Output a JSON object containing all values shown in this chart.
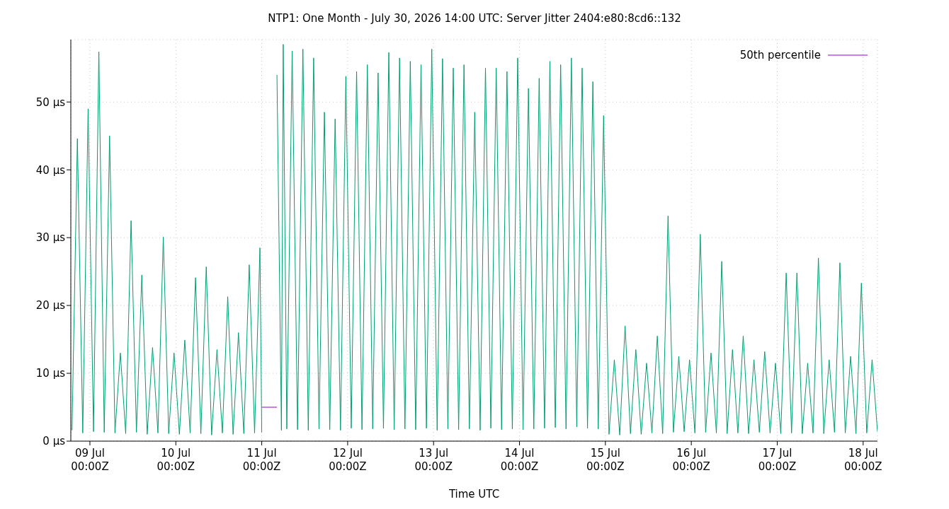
{
  "chart_data": {
    "type": "line",
    "title": "NTP1: One Month - July 30, 2026 14:00 UTC: Server Jitter 2404:e80:8cd6::132",
    "xlabel": "Time UTC",
    "xlim": [
      "--07-08T18:40",
      "--07-18T04:00"
    ],
    "xticks": [
      {
        "value": "--07-09T00:00",
        "label": "09 Jul 00:00Z"
      },
      {
        "value": "--07-10T00:00",
        "label": "10 Jul 00:00Z"
      },
      {
        "value": "--07-11T00:00",
        "label": "11 Jul 00:00Z"
      },
      {
        "value": "--07-12T00:00",
        "label": "12 Jul 00:00Z"
      },
      {
        "value": "--07-13T00:00",
        "label": "13 Jul 00:00Z"
      },
      {
        "value": "--07-14T00:00",
        "label": "14 Jul 00:00Z"
      },
      {
        "value": "--07-15T00:00",
        "label": "15 Jul 00:00Z"
      },
      {
        "value": "--07-16T00:00",
        "label": "16 Jul 00:00Z"
      },
      {
        "value": "--07-17T00:00",
        "label": "17 Jul 00:00Z"
      },
      {
        "value": "--07-18T00:00",
        "label": "18 Jul 00:00Z"
      }
    ],
    "ylim": [
      0,
      59.2
    ],
    "yticks": [
      {
        "value": 0,
        "label": "0 µs"
      },
      {
        "value": 10,
        "label": "10 µs"
      },
      {
        "value": 20,
        "label": "20 µs"
      },
      {
        "value": 30,
        "label": "30 µs"
      },
      {
        "value": 40,
        "label": "40 µs"
      },
      {
        "value": 50,
        "label": "50 µs"
      }
    ],
    "grid": true,
    "legend": "top right",
    "line_style": "solid",
    "marker": "none",
    "series": [
      {
        "name": "50th percentile",
        "color": "#9400d3",
        "x": [
          "--07-11T00:00",
          "--07-11T04:15"
        ],
        "values": [
          5,
          5
        ]
      },
      {
        "color": "#009e73",
        "x": [
          "--07-08T19:00",
          "--07-08T20:30",
          "--07-08T22:00",
          "--07-08T23:30",
          "--07-09T01:00",
          "--07-09T02:30",
          "--07-09T04:00",
          "--07-09T05:30",
          "--07-09T07:00",
          "--07-09T08:30",
          "--07-09T10:00",
          "--07-09T11:30",
          "--07-09T13:00",
          "--07-09T14:30",
          "--07-09T16:00",
          "--07-09T17:30",
          "--07-09T19:00",
          "--07-09T20:30",
          "--07-09T22:00",
          "--07-09T23:30",
          "--07-10T01:00",
          "--07-10T02:30",
          "--07-10T04:00",
          "--07-10T05:30",
          "--07-10T07:00",
          "--07-10T08:30",
          "--07-10T10:00",
          "--07-10T11:30",
          "--07-10T13:00",
          "--07-10T14:30",
          "--07-10T16:00",
          "--07-10T17:30",
          "--07-10T19:00",
          "--07-10T20:30",
          "--07-10T22:00",
          "--07-10T23:30",
          "--07-11T00:00",
          "--07-11T02:00",
          "--07-11T04:15",
          "--07-11T05:30",
          "--07-11T06:00",
          "--07-11T07:00",
          "--07-11T08:30",
          "--07-11T10:00",
          "--07-11T11:30",
          "--07-11T13:00",
          "--07-11T14:30",
          "--07-11T16:00",
          "--07-11T17:30",
          "--07-11T19:00",
          "--07-11T20:30",
          "--07-11T22:00",
          "--07-11T23:30",
          "--07-12T01:00",
          "--07-12T02:30",
          "--07-12T04:00",
          "--07-12T05:30",
          "--07-12T07:00",
          "--07-12T08:30",
          "--07-12T10:00",
          "--07-12T11:30",
          "--07-12T13:00",
          "--07-12T14:30",
          "--07-12T16:00",
          "--07-12T17:30",
          "--07-12T19:00",
          "--07-12T20:30",
          "--07-12T22:00",
          "--07-12T23:30",
          "--07-13T01:00",
          "--07-13T02:30",
          "--07-13T04:00",
          "--07-13T05:30",
          "--07-13T07:00",
          "--07-13T08:30",
          "--07-13T10:00",
          "--07-13T11:30",
          "--07-13T13:00",
          "--07-13T14:30",
          "--07-13T16:00",
          "--07-13T17:30",
          "--07-13T19:00",
          "--07-13T20:30",
          "--07-13T22:00",
          "--07-13T23:30",
          "--07-14T01:00",
          "--07-14T02:30",
          "--07-14T04:00",
          "--07-14T05:30",
          "--07-14T07:00",
          "--07-14T08:30",
          "--07-14T10:00",
          "--07-14T11:30",
          "--07-14T13:00",
          "--07-14T14:30",
          "--07-14T16:00",
          "--07-14T17:30",
          "--07-14T19:00",
          "--07-14T20:30",
          "--07-14T22:00",
          "--07-14T23:30",
          "--07-15T01:00",
          "--07-15T02:30",
          "--07-15T04:00",
          "--07-15T05:30",
          "--07-15T07:00",
          "--07-15T08:30",
          "--07-15T10:00",
          "--07-15T11:30",
          "--07-15T13:00",
          "--07-15T14:30",
          "--07-15T16:00",
          "--07-15T17:30",
          "--07-15T19:00",
          "--07-15T20:30",
          "--07-15T22:00",
          "--07-15T23:30",
          "--07-16T01:00",
          "--07-16T02:30",
          "--07-16T04:00",
          "--07-16T05:30",
          "--07-16T07:00",
          "--07-16T08:30",
          "--07-16T10:00",
          "--07-16T11:30",
          "--07-16T13:00",
          "--07-16T14:30",
          "--07-16T16:00",
          "--07-16T17:30",
          "--07-16T19:00",
          "--07-16T20:30",
          "--07-16T22:00",
          "--07-16T23:30",
          "--07-17T01:00",
          "--07-17T02:30",
          "--07-17T04:00",
          "--07-17T05:30",
          "--07-17T07:00",
          "--07-17T08:30",
          "--07-17T10:00",
          "--07-17T11:30",
          "--07-17T13:00",
          "--07-17T14:30",
          "--07-17T16:00",
          "--07-17T17:30",
          "--07-17T19:00",
          "--07-17T20:30",
          "--07-17T22:00",
          "--07-17T23:30",
          "--07-18T01:00",
          "--07-18T02:30",
          "--07-18T04:00"
        ],
        "values": [
          1.6,
          44.6,
          1.2,
          49,
          1.4,
          57.4,
          1.3,
          45,
          1.2,
          13,
          1.1,
          32.5,
          1.3,
          24.5,
          1.0,
          13.8,
          1.2,
          30.1,
          1.1,
          13,
          1.0,
          14.9,
          1.2,
          24.1,
          1.1,
          25.7,
          0.9,
          13.5,
          1.2,
          21.3,
          1.0,
          16,
          1.1,
          26,
          1.2,
          28.5,
          1.3,
          null,
          54,
          1.6,
          58.5,
          1.8,
          57.5,
          1.7,
          57.8,
          1.6,
          56.5,
          1.8,
          48.5,
          1.7,
          47.5,
          1.6,
          53.8,
          1.9,
          54.5,
          1.7,
          55.5,
          1.8,
          54.3,
          1.9,
          57.3,
          1.7,
          56.5,
          1.8,
          56,
          1.7,
          55.5,
          1.9,
          57.8,
          1.6,
          56.4,
          1.8,
          55,
          1.7,
          55.5,
          1.8,
          48.5,
          1.6,
          55,
          1.9,
          55,
          1.7,
          54.5,
          1.8,
          56.5,
          1.7,
          52,
          1.8,
          53.5,
          1.9,
          56,
          2.0,
          55.5,
          1.8,
          56.5,
          2.1,
          55,
          1.9,
          53,
          1.8,
          48,
          1.0,
          12,
          0.9,
          17,
          1.1,
          13.5,
          1.0,
          11.5,
          1.2,
          15.5,
          1.1,
          33.2,
          1.3,
          12.5,
          1.4,
          12,
          1.2,
          30.5,
          1.3,
          13,
          1.2,
          26.5,
          1.1,
          13.5,
          1.2,
          15.5,
          1.1,
          12,
          1.3,
          13.2,
          1.2,
          11.5,
          1.1,
          24.8,
          1.2,
          24.8,
          1.1,
          11.5,
          1.2,
          27,
          1.1,
          12,
          1.3,
          26.3,
          1.2,
          12.5,
          1.1,
          23.3,
          1.2,
          12,
          1.4
        ]
      }
    ]
  }
}
